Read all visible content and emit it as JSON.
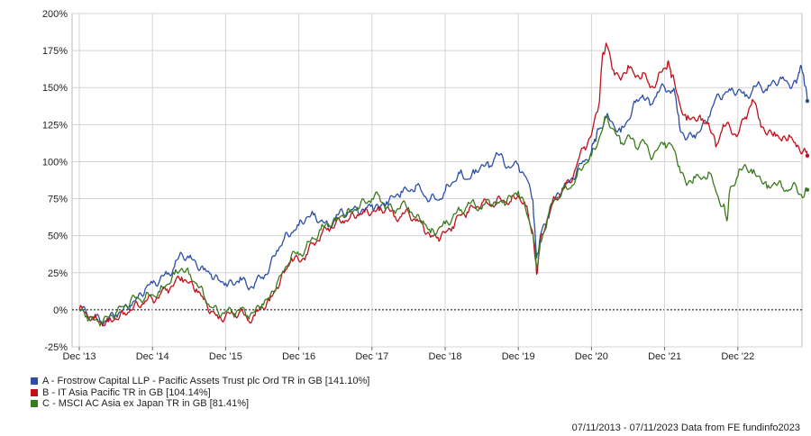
{
  "chart_data": {
    "type": "line",
    "ylim": [
      -25,
      200
    ],
    "yticks": [
      -25,
      0,
      25,
      50,
      75,
      100,
      125,
      150,
      175,
      200
    ],
    "ytick_suffix": "%",
    "xticks": [
      "Dec '13",
      "Dec '14",
      "Dec '15",
      "Dec '16",
      "Dec '17",
      "Dec '18",
      "Dec '19",
      "Dec '20",
      "Dec '21",
      "Dec '22"
    ],
    "grid": true,
    "legend_position": "bottom-left",
    "series": [
      {
        "id": "A",
        "name": "A - Frostrow Capital LLP - Pacific Assets Trust plc Ord TR in GB [141.10%]",
        "color": "#2b4ea6",
        "end_label": "A",
        "points": [
          [
            0,
            0
          ],
          [
            0.1,
            -2
          ],
          [
            0.2,
            -5
          ],
          [
            0.3,
            -8
          ],
          [
            0.4,
            -6
          ],
          [
            0.5,
            -3
          ],
          [
            0.6,
            0
          ],
          [
            0.7,
            3
          ],
          [
            0.8,
            8
          ],
          [
            0.9,
            14
          ],
          [
            1.0,
            18
          ],
          [
            1.1,
            20
          ],
          [
            1.2,
            24
          ],
          [
            1.3,
            29
          ],
          [
            1.4,
            38
          ],
          [
            1.5,
            35
          ],
          [
            1.6,
            31
          ],
          [
            1.7,
            27
          ],
          [
            1.8,
            24
          ],
          [
            1.9,
            20
          ],
          [
            2.0,
            18
          ],
          [
            2.1,
            17
          ],
          [
            2.2,
            22
          ],
          [
            2.3,
            15
          ],
          [
            2.4,
            18
          ],
          [
            2.5,
            22
          ],
          [
            2.6,
            28
          ],
          [
            2.7,
            40
          ],
          [
            2.8,
            48
          ],
          [
            2.9,
            52
          ],
          [
            3.0,
            57
          ],
          [
            3.1,
            62
          ],
          [
            3.2,
            64
          ],
          [
            3.3,
            60
          ],
          [
            3.4,
            56
          ],
          [
            3.5,
            62
          ],
          [
            3.6,
            66
          ],
          [
            3.7,
            66
          ],
          [
            3.8,
            68
          ],
          [
            3.9,
            67
          ],
          [
            4.0,
            71
          ],
          [
            4.1,
            69
          ],
          [
            4.2,
            73
          ],
          [
            4.3,
            76
          ],
          [
            4.4,
            80
          ],
          [
            4.5,
            80
          ],
          [
            4.6,
            84
          ],
          [
            4.7,
            78
          ],
          [
            4.8,
            75
          ],
          [
            4.9,
            74
          ],
          [
            5.0,
            80
          ],
          [
            5.1,
            86
          ],
          [
            5.2,
            92
          ],
          [
            5.3,
            88
          ],
          [
            5.4,
            92
          ],
          [
            5.5,
            98
          ],
          [
            5.6,
            96
          ],
          [
            5.7,
            106
          ],
          [
            5.8,
            100
          ],
          [
            5.9,
            96
          ],
          [
            6.0,
            98
          ],
          [
            6.1,
            90
          ],
          [
            6.2,
            74
          ],
          [
            6.25,
            35
          ],
          [
            6.3,
            50
          ],
          [
            6.4,
            62
          ],
          [
            6.5,
            75
          ],
          [
            6.6,
            82
          ],
          [
            6.7,
            86
          ],
          [
            6.8,
            94
          ],
          [
            6.9,
            100
          ],
          [
            7.0,
            107
          ],
          [
            7.05,
            115
          ],
          [
            7.1,
            122
          ],
          [
            7.2,
            130
          ],
          [
            7.3,
            125
          ],
          [
            7.4,
            120
          ],
          [
            7.5,
            128
          ],
          [
            7.6,
            140
          ],
          [
            7.7,
            145
          ],
          [
            7.8,
            138
          ],
          [
            7.9,
            147
          ],
          [
            8.0,
            150
          ],
          [
            8.1,
            148
          ],
          [
            8.15,
            144
          ],
          [
            8.2,
            125
          ],
          [
            8.3,
            115
          ],
          [
            8.4,
            118
          ],
          [
            8.5,
            122
          ],
          [
            8.6,
            130
          ],
          [
            8.7,
            143
          ],
          [
            8.8,
            145
          ],
          [
            8.9,
            148
          ],
          [
            9.0,
            148
          ],
          [
            9.1,
            144
          ],
          [
            9.2,
            148
          ],
          [
            9.3,
            152
          ],
          [
            9.4,
            148
          ],
          [
            9.5,
            154
          ],
          [
            9.6,
            156
          ],
          [
            9.7,
            152
          ],
          [
            9.8,
            153
          ],
          [
            9.85,
            163
          ],
          [
            9.9,
            158
          ],
          [
            9.95,
            141
          ]
        ]
      },
      {
        "id": "B",
        "name": "B - IT Asia Pacific TR in GB [104.14%]",
        "color": "#c0101a",
        "end_label": "B",
        "points": [
          [
            0,
            0
          ],
          [
            0.1,
            -3
          ],
          [
            0.2,
            -6
          ],
          [
            0.3,
            -9
          ],
          [
            0.4,
            -8
          ],
          [
            0.5,
            -6
          ],
          [
            0.6,
            -3
          ],
          [
            0.7,
            0
          ],
          [
            0.8,
            3
          ],
          [
            0.9,
            6
          ],
          [
            1.0,
            7
          ],
          [
            1.1,
            10
          ],
          [
            1.2,
            14
          ],
          [
            1.3,
            18
          ],
          [
            1.4,
            22
          ],
          [
            1.5,
            18
          ],
          [
            1.6,
            14
          ],
          [
            1.7,
            7
          ],
          [
            1.8,
            -1
          ],
          [
            1.9,
            -6
          ],
          [
            2.0,
            -4
          ],
          [
            2.1,
            -3
          ],
          [
            2.2,
            -1
          ],
          [
            2.3,
            -7
          ],
          [
            2.4,
            -4
          ],
          [
            2.5,
            2
          ],
          [
            2.6,
            6
          ],
          [
            2.7,
            15
          ],
          [
            2.8,
            25
          ],
          [
            2.9,
            35
          ],
          [
            3.0,
            33
          ],
          [
            3.1,
            37
          ],
          [
            3.2,
            45
          ],
          [
            3.3,
            50
          ],
          [
            3.4,
            55
          ],
          [
            3.5,
            58
          ],
          [
            3.6,
            60
          ],
          [
            3.7,
            62
          ],
          [
            3.8,
            64
          ],
          [
            3.9,
            66
          ],
          [
            4.0,
            66
          ],
          [
            4.1,
            67
          ],
          [
            4.2,
            69
          ],
          [
            4.3,
            63
          ],
          [
            4.4,
            63
          ],
          [
            4.5,
            66
          ],
          [
            4.6,
            60
          ],
          [
            4.7,
            57
          ],
          [
            4.8,
            49
          ],
          [
            4.9,
            49
          ],
          [
            5.0,
            52
          ],
          [
            5.1,
            56
          ],
          [
            5.2,
            64
          ],
          [
            5.3,
            66
          ],
          [
            5.4,
            69
          ],
          [
            5.5,
            72
          ],
          [
            5.6,
            71
          ],
          [
            5.7,
            73
          ],
          [
            5.8,
            74
          ],
          [
            5.9,
            73
          ],
          [
            6.0,
            77
          ],
          [
            6.1,
            70
          ],
          [
            6.2,
            52
          ],
          [
            6.25,
            24
          ],
          [
            6.3,
            47
          ],
          [
            6.4,
            62
          ],
          [
            6.5,
            75
          ],
          [
            6.6,
            80
          ],
          [
            6.7,
            86
          ],
          [
            6.8,
            98
          ],
          [
            6.9,
            110
          ],
          [
            7.0,
            118
          ],
          [
            7.1,
            138
          ],
          [
            7.15,
            172
          ],
          [
            7.2,
            180
          ],
          [
            7.3,
            162
          ],
          [
            7.4,
            155
          ],
          [
            7.5,
            165
          ],
          [
            7.6,
            157
          ],
          [
            7.7,
            160
          ],
          [
            7.8,
            150
          ],
          [
            7.9,
            155
          ],
          [
            8.0,
            163
          ],
          [
            8.05,
            168
          ],
          [
            8.1,
            158
          ],
          [
            8.2,
            140
          ],
          [
            8.3,
            128
          ],
          [
            8.4,
            130
          ],
          [
            8.5,
            128
          ],
          [
            8.6,
            126
          ],
          [
            8.7,
            110
          ],
          [
            8.8,
            125
          ],
          [
            8.9,
            122
          ],
          [
            9.0,
            118
          ],
          [
            9.1,
            130
          ],
          [
            9.2,
            142
          ],
          [
            9.3,
            128
          ],
          [
            9.4,
            118
          ],
          [
            9.5,
            120
          ],
          [
            9.6,
            114
          ],
          [
            9.7,
            118
          ],
          [
            9.8,
            110
          ],
          [
            9.9,
            108
          ],
          [
            9.95,
            104
          ]
        ]
      },
      {
        "id": "C",
        "name": "C - MSCI AC Asia ex Japan TR in GB [81.41%]",
        "color": "#3a7a1e",
        "end_label": "C",
        "points": [
          [
            0,
            0
          ],
          [
            0.1,
            -4
          ],
          [
            0.2,
            -7
          ],
          [
            0.3,
            -8
          ],
          [
            0.4,
            -5
          ],
          [
            0.5,
            -2
          ],
          [
            0.6,
            2
          ],
          [
            0.7,
            6
          ],
          [
            0.8,
            8
          ],
          [
            0.9,
            8
          ],
          [
            1.0,
            10
          ],
          [
            1.1,
            12
          ],
          [
            1.2,
            17
          ],
          [
            1.3,
            24
          ],
          [
            1.4,
            28
          ],
          [
            1.5,
            24
          ],
          [
            1.6,
            18
          ],
          [
            1.7,
            10
          ],
          [
            1.8,
            2
          ],
          [
            1.9,
            -2
          ],
          [
            2.0,
            -1
          ],
          [
            2.1,
            -2
          ],
          [
            2.2,
            1
          ],
          [
            2.3,
            -4
          ],
          [
            2.4,
            -1
          ],
          [
            2.5,
            4
          ],
          [
            2.6,
            8
          ],
          [
            2.7,
            18
          ],
          [
            2.8,
            26
          ],
          [
            2.9,
            37
          ],
          [
            3.0,
            37
          ],
          [
            3.1,
            42
          ],
          [
            3.2,
            48
          ],
          [
            3.3,
            54
          ],
          [
            3.4,
            58
          ],
          [
            3.5,
            60
          ],
          [
            3.6,
            64
          ],
          [
            3.7,
            66
          ],
          [
            3.8,
            69
          ],
          [
            3.9,
            73
          ],
          [
            4.0,
            75
          ],
          [
            4.1,
            77
          ],
          [
            4.2,
            69
          ],
          [
            4.3,
            67
          ],
          [
            4.4,
            71
          ],
          [
            4.5,
            69
          ],
          [
            4.6,
            62
          ],
          [
            4.7,
            60
          ],
          [
            4.8,
            52
          ],
          [
            4.9,
            54
          ],
          [
            5.0,
            58
          ],
          [
            5.1,
            62
          ],
          [
            5.2,
            67
          ],
          [
            5.3,
            70
          ],
          [
            5.4,
            72
          ],
          [
            5.5,
            68
          ],
          [
            5.6,
            74
          ],
          [
            5.7,
            71
          ],
          [
            5.8,
            73
          ],
          [
            5.9,
            76
          ],
          [
            6.0,
            80
          ],
          [
            6.1,
            68
          ],
          [
            6.2,
            52
          ],
          [
            6.25,
            28
          ],
          [
            6.3,
            45
          ],
          [
            6.4,
            62
          ],
          [
            6.5,
            75
          ],
          [
            6.6,
            80
          ],
          [
            6.7,
            82
          ],
          [
            6.8,
            90
          ],
          [
            6.9,
            98
          ],
          [
            7.0,
            104
          ],
          [
            7.1,
            115
          ],
          [
            7.2,
            130
          ],
          [
            7.3,
            122
          ],
          [
            7.4,
            112
          ],
          [
            7.5,
            118
          ],
          [
            7.6,
            110
          ],
          [
            7.7,
            115
          ],
          [
            7.8,
            104
          ],
          [
            7.9,
            108
          ],
          [
            8.0,
            113
          ],
          [
            8.1,
            111
          ],
          [
            8.2,
            97
          ],
          [
            8.3,
            84
          ],
          [
            8.4,
            90
          ],
          [
            8.5,
            88
          ],
          [
            8.6,
            93
          ],
          [
            8.7,
            80
          ],
          [
            8.8,
            70
          ],
          [
            8.85,
            60
          ],
          [
            8.9,
            83
          ],
          [
            9.0,
            90
          ],
          [
            9.1,
            98
          ],
          [
            9.2,
            92
          ],
          [
            9.3,
            90
          ],
          [
            9.4,
            82
          ],
          [
            9.5,
            86
          ],
          [
            9.6,
            83
          ],
          [
            9.7,
            81
          ],
          [
            9.8,
            83
          ],
          [
            9.9,
            76
          ],
          [
            9.95,
            81
          ]
        ]
      }
    ]
  },
  "legend": [
    {
      "label": "A - Frostrow Capital LLP - Pacific Assets Trust plc Ord TR in GB [141.10%]",
      "color": "#2b4ea6"
    },
    {
      "label": "B - IT Asia Pacific TR in GB [104.14%]",
      "color": "#c0101a"
    },
    {
      "label": "C - MSCI AC Asia ex Japan TR in GB [81.41%]",
      "color": "#3a7a1e"
    }
  ],
  "footer": "07/11/2013 - 07/11/2023 Data from FE fundinfo2023"
}
